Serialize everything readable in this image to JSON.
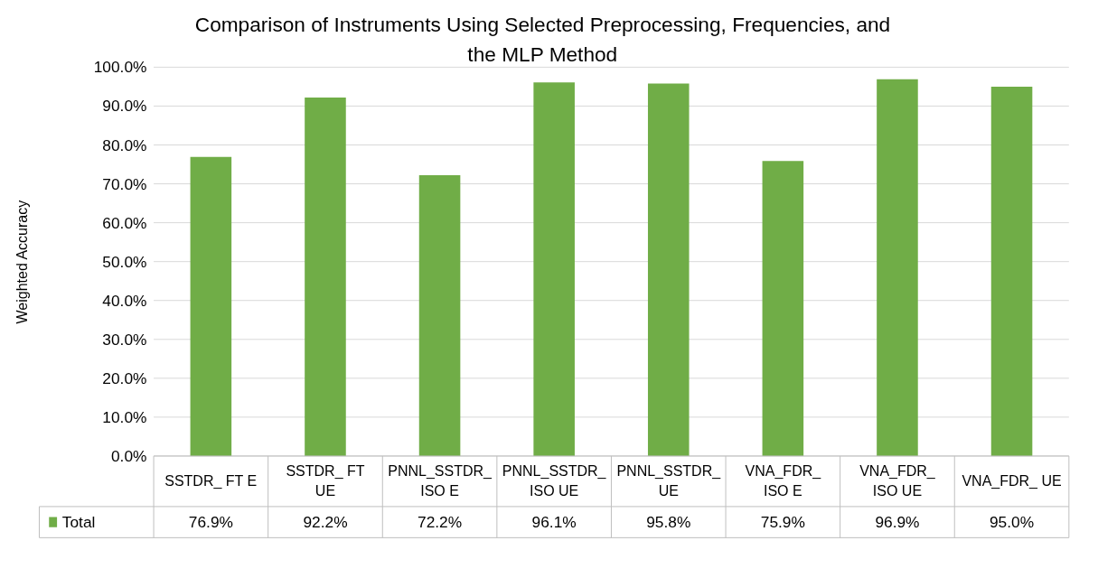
{
  "chart_data": {
    "type": "bar",
    "title": "Comparison of Instruments Using Selected Preprocessing, Frequencies, and the MLP Method",
    "ylabel": "Weighted Accuracy",
    "categories": [
      "SSTDR_ FT E",
      "SSTDR_ FT UE",
      "PNNL_SSTDR_ ISO E",
      "PNNL_SSTDR_ ISO UE",
      "PNNL_SSTDR_ UE",
      "VNA_FDR_ ISO E",
      "VNA_FDR_ ISO UE",
      "VNA_FDR_ UE"
    ],
    "series": [
      {
        "name": "Total",
        "color": "#70ad47",
        "values": [
          76.9,
          92.2,
          72.2,
          96.1,
          95.8,
          75.9,
          96.9,
          95.0
        ],
        "value_labels": [
          "76.9%",
          "92.2%",
          "72.2%",
          "96.1%",
          "95.8%",
          "75.9%",
          "96.9%",
          "95.0%"
        ]
      }
    ],
    "ylim": [
      0,
      100
    ],
    "yticks": [
      {
        "value": 0,
        "label": "0.0%"
      },
      {
        "value": 10,
        "label": "10.0%"
      },
      {
        "value": 20,
        "label": "20.0%"
      },
      {
        "value": 30,
        "label": "30.0%"
      },
      {
        "value": 40,
        "label": "40.0%"
      },
      {
        "value": 50,
        "label": "50.0%"
      },
      {
        "value": 60,
        "label": "60.0%"
      },
      {
        "value": 70,
        "label": "70.0%"
      },
      {
        "value": 80,
        "label": "80.0%"
      },
      {
        "value": 90,
        "label": "90.0%"
      },
      {
        "value": 100,
        "label": "100.0%"
      }
    ],
    "grid": "y",
    "legend": "bottom"
  }
}
